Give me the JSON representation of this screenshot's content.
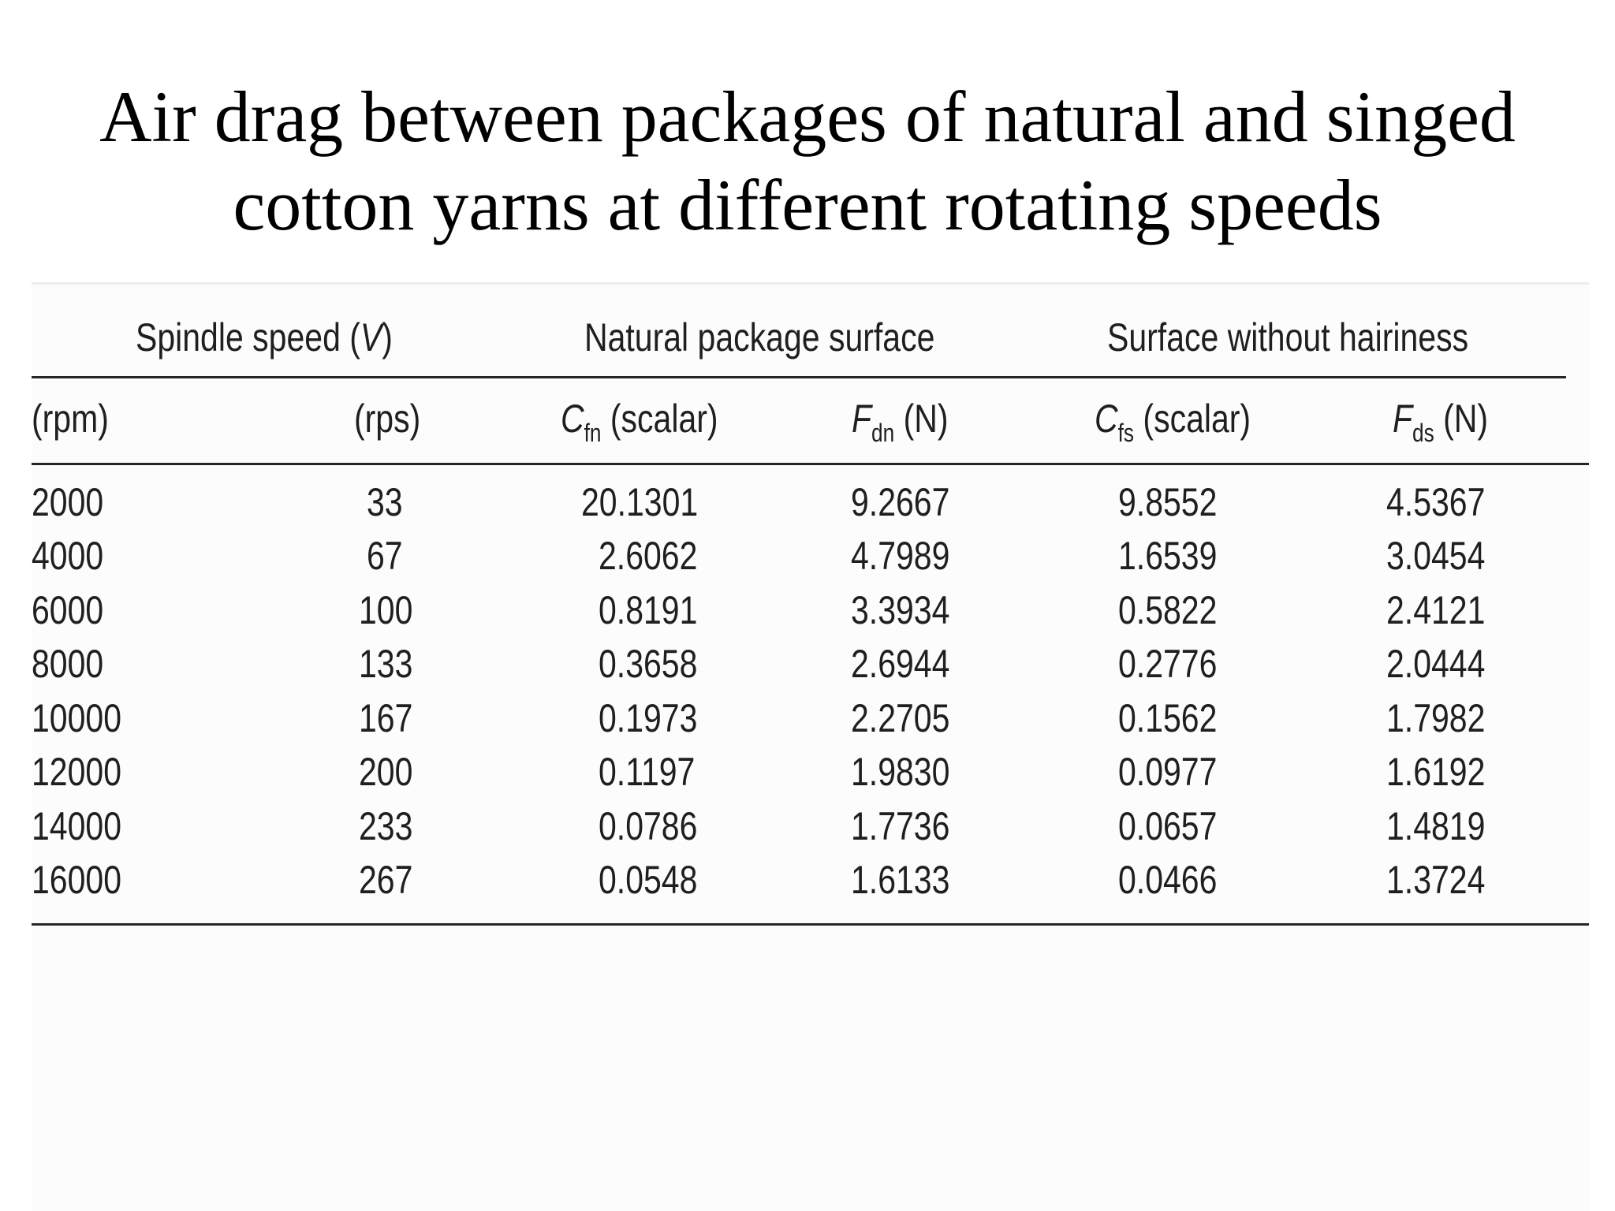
{
  "title": {
    "line1": "Air drag between packages of natural and singed",
    "line2": "cotton yarns at different rotating speeds"
  },
  "table": {
    "group_headers": {
      "spindle_speed_prefix": "Spindle speed (",
      "spindle_speed_var": "V",
      "spindle_speed_suffix": ")",
      "natural": "Natural package surface",
      "without_hairiness": "Surface without hairiness"
    },
    "column_headers": {
      "rpm": "(rpm)",
      "rps": "(rps)",
      "cfn_base": "C",
      "cfn_sub": "fn",
      "cfn_rest": " (scalar)",
      "fdn_base": "F",
      "fdn_sub": "dn",
      "fdn_rest": " (N)",
      "cfs_base": "C",
      "cfs_sub": "fs",
      "cfs_rest": " (scalar)",
      "fds_base": "F",
      "fds_sub": "ds",
      "fds_rest": " (N)"
    },
    "rows": [
      [
        "2000",
        "33",
        "20.1301",
        "9.2667",
        "9.8552",
        "4.5367"
      ],
      [
        "4000",
        "67",
        "2.6062",
        "4.7989",
        "1.6539",
        "3.0454"
      ],
      [
        "6000",
        "100",
        "0.8191",
        "3.3934",
        "0.5822",
        "2.4121"
      ],
      [
        "8000",
        "133",
        "0.3658",
        "2.6944",
        "0.2776",
        "2.0444"
      ],
      [
        "10000",
        "167",
        "0.1973",
        "2.2705",
        "0.1562",
        "1.7982"
      ],
      [
        "12000",
        "200",
        "0.1197",
        "1.9830",
        "0.0977",
        "1.6192"
      ],
      [
        "14000",
        "233",
        "0.0786",
        "1.7736",
        "0.0657",
        "1.4819"
      ],
      [
        "16000",
        "267",
        "0.0548",
        "1.6133",
        "0.0466",
        "1.3724"
      ]
    ]
  }
}
